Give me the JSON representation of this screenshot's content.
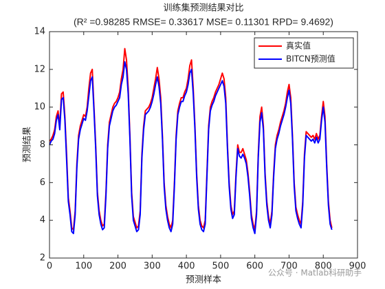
{
  "chart_data": {
    "type": "line",
    "title": "训练集预测结果对比",
    "subtitle": "(R² =0.98285 RMSE= 0.33617 MSE= 0.11301 RPD= 9.4692)",
    "x_label": "预测样本",
    "y_label": "预测结果",
    "watermark": "公众号 · Matlab科研助手",
    "legend": "upper right",
    "xlim": [
      0,
      900
    ],
    "xticks": [
      0,
      100,
      200,
      300,
      400,
      500,
      600,
      700,
      800,
      900
    ],
    "ylim": [
      2,
      14
    ],
    "yticks": [
      2,
      4,
      6,
      8,
      10,
      12,
      14
    ],
    "x": [
      0,
      5,
      10,
      15,
      20,
      25,
      30,
      35,
      40,
      45,
      50,
      55,
      60,
      65,
      70,
      75,
      80,
      85,
      90,
      95,
      100,
      105,
      110,
      115,
      120,
      125,
      130,
      135,
      140,
      145,
      150,
      155,
      160,
      165,
      170,
      175,
      180,
      185,
      190,
      195,
      200,
      205,
      210,
      215,
      220,
      225,
      230,
      235,
      240,
      245,
      250,
      255,
      260,
      265,
      270,
      275,
      280,
      285,
      290,
      295,
      300,
      305,
      310,
      315,
      320,
      325,
      330,
      335,
      340,
      345,
      350,
      355,
      360,
      365,
      370,
      375,
      380,
      385,
      390,
      395,
      400,
      405,
      410,
      415,
      420,
      425,
      430,
      435,
      440,
      445,
      450,
      455,
      460,
      465,
      470,
      475,
      480,
      485,
      490,
      495,
      500,
      505,
      510,
      515,
      520,
      525,
      530,
      535,
      540,
      545,
      550,
      555,
      560,
      565,
      570,
      575,
      580,
      585,
      590,
      595,
      600,
      605,
      610,
      615,
      620,
      625,
      630,
      635,
      640,
      645,
      650,
      655,
      660,
      665,
      670,
      675,
      680,
      685,
      690,
      695,
      700,
      705,
      710,
      715,
      720,
      725,
      730,
      735,
      740,
      745,
      750,
      755,
      760,
      765,
      770,
      775,
      780,
      785,
      790,
      795,
      800,
      805,
      810,
      815,
      820,
      825
    ],
    "series": [
      {
        "name": "真实值",
        "color": "#ff0000",
        "values": [
          8.2,
          8.3,
          8.5,
          8.8,
          9.5,
          9.8,
          9.0,
          10.7,
          10.8,
          9.5,
          7.5,
          5.2,
          4.5,
          3.6,
          3.5,
          4.5,
          7.0,
          8.5,
          9.0,
          9.3,
          9.6,
          9.5,
          10.0,
          11.0,
          11.8,
          12.0,
          10.0,
          8.0,
          5.5,
          4.5,
          4.0,
          3.7,
          3.8,
          5.5,
          8.0,
          9.2,
          9.6,
          10.0,
          10.2,
          10.3,
          10.5,
          10.8,
          11.5,
          12.0,
          13.1,
          12.5,
          11.0,
          8.5,
          5.5,
          4.2,
          3.9,
          3.6,
          3.7,
          4.5,
          7.5,
          9.0,
          9.8,
          9.9,
          10.0,
          10.2,
          10.5,
          11.0,
          11.5,
          12.1,
          11.5,
          10.5,
          8.5,
          6.0,
          4.8,
          4.2,
          3.8,
          3.6,
          4.0,
          6.0,
          8.5,
          9.8,
          10.2,
          10.5,
          10.5,
          10.8,
          11.0,
          11.5,
          12.2,
          12.5,
          11.0,
          9.0,
          6.5,
          4.8,
          4.0,
          3.7,
          3.6,
          4.0,
          6.5,
          9.0,
          10.0,
          10.3,
          10.5,
          10.8,
          11.0,
          11.2,
          11.5,
          11.8,
          11.5,
          10.5,
          8.0,
          6.0,
          4.8,
          4.3,
          4.5,
          6.5,
          8.0,
          7.6,
          7.6,
          7.8,
          7.5,
          7.2,
          6.5,
          5.5,
          4.3,
          3.8,
          3.5,
          4.5,
          7.5,
          9.5,
          10.0,
          9.0,
          6.5,
          5.0,
          4.2,
          3.8,
          4.5,
          6.5,
          8.0,
          8.5,
          8.8,
          9.2,
          9.5,
          9.8,
          10.2,
          10.8,
          11.2,
          10.5,
          8.5,
          6.0,
          4.7,
          4.3,
          4.0,
          3.8,
          5.0,
          7.5,
          8.7,
          8.6,
          8.5,
          8.4,
          8.5,
          8.3,
          8.6,
          8.3,
          8.5,
          9.5,
          10.3,
          9.5,
          7.0,
          5.0,
          4.0,
          3.6
        ]
      },
      {
        "name": "BITCN预测值",
        "color": "#0000ff",
        "values": [
          8.0,
          8.2,
          8.3,
          8.6,
          9.3,
          9.6,
          8.8,
          10.4,
          10.5,
          9.3,
          7.2,
          5.0,
          4.3,
          3.4,
          3.3,
          4.3,
          6.8,
          8.3,
          8.8,
          9.1,
          9.4,
          9.3,
          9.8,
          10.6,
          11.4,
          11.6,
          9.8,
          7.8,
          5.3,
          4.3,
          3.8,
          3.5,
          3.6,
          5.3,
          7.8,
          9.0,
          9.4,
          9.8,
          10.0,
          10.1,
          10.3,
          10.5,
          11.2,
          11.6,
          12.4,
          12.0,
          10.7,
          8.3,
          5.3,
          4.0,
          3.7,
          3.4,
          3.5,
          4.3,
          7.3,
          8.8,
          9.6,
          9.7,
          9.8,
          10.0,
          10.3,
          10.7,
          11.2,
          11.6,
          11.1,
          10.2,
          8.3,
          5.8,
          4.6,
          4.0,
          3.6,
          3.4,
          3.8,
          5.8,
          8.3,
          9.6,
          10.0,
          10.3,
          10.3,
          10.6,
          10.8,
          11.2,
          11.8,
          12.0,
          10.7,
          8.8,
          6.3,
          4.6,
          3.8,
          3.5,
          3.4,
          3.8,
          6.3,
          8.8,
          9.8,
          10.1,
          10.3,
          10.6,
          10.8,
          11.0,
          11.2,
          11.4,
          11.1,
          10.2,
          7.8,
          5.8,
          4.6,
          4.1,
          4.3,
          6.3,
          7.8,
          7.4,
          7.3,
          7.5,
          7.3,
          7.0,
          6.3,
          5.3,
          4.1,
          3.6,
          3.3,
          4.3,
          7.3,
          9.2,
          9.7,
          8.8,
          6.3,
          4.8,
          4.0,
          3.6,
          4.3,
          6.3,
          7.8,
          8.3,
          8.6,
          9.0,
          9.3,
          9.6,
          10.0,
          10.5,
          10.9,
          10.2,
          8.3,
          5.8,
          4.5,
          4.1,
          3.8,
          3.6,
          4.8,
          7.3,
          8.5,
          8.4,
          8.3,
          8.2,
          8.3,
          8.1,
          8.4,
          8.1,
          8.3,
          9.3,
          10.0,
          9.2,
          6.8,
          4.8,
          3.8,
          3.5
        ]
      }
    ]
  }
}
